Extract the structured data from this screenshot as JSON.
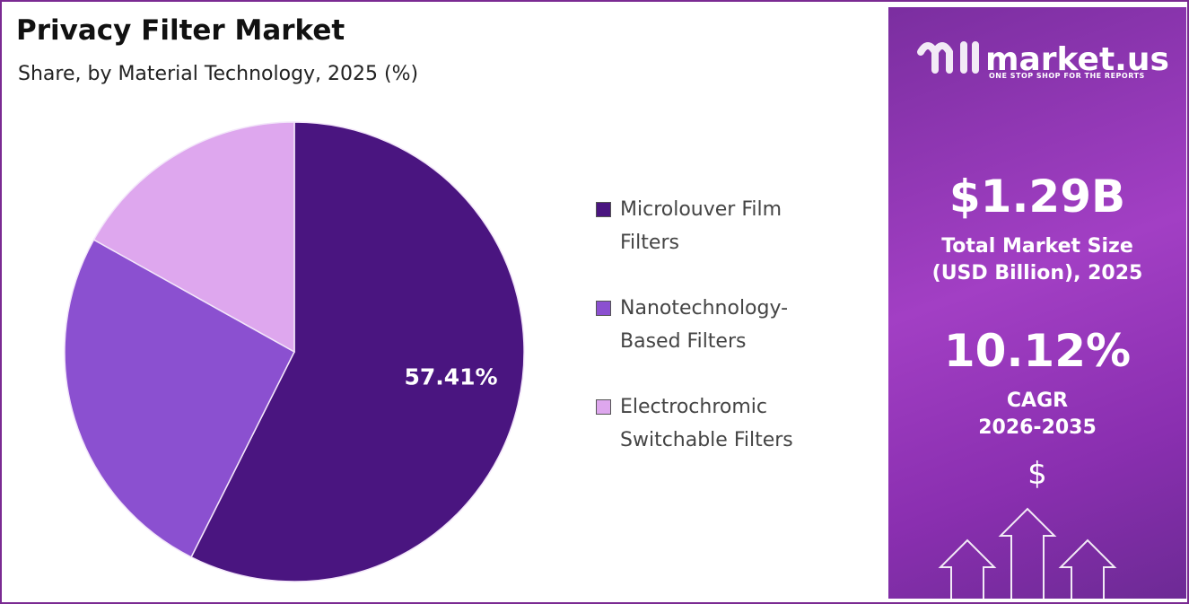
{
  "chart_data": {
    "type": "pie",
    "title": "Privacy Filter Market",
    "subtitle": "Share, by Material Technology, 2025 (%)",
    "categories": [
      "Microlouver Film Filters",
      "Nanotechnology-Based Filters",
      "Electrochromic Switchable Filters"
    ],
    "values": [
      57.41,
      25.7,
      16.89
    ],
    "value_labels": [
      "57.41%",
      null,
      null
    ],
    "colors": [
      "#4a1580",
      "#8b50d0",
      "#dea7ee"
    ]
  },
  "sidebar": {
    "logo": "market.us",
    "tagline": "ONE STOP SHOP FOR THE REPORTS",
    "market_size": "$1.29B",
    "market_size_label": "Total Market Size (USD Billion), 2025",
    "cagr": "10.12%",
    "cagr_label": "CAGR",
    "cagr_period": "2026-2035",
    "currency_icon": "$"
  }
}
